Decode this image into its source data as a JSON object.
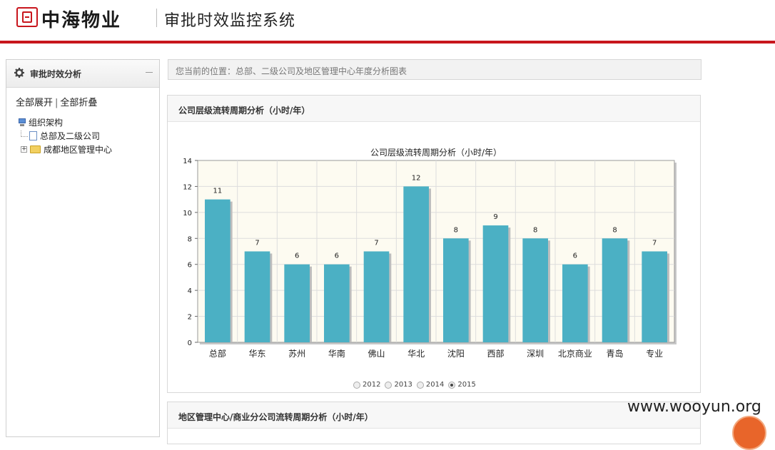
{
  "header": {
    "brand": "中海物业",
    "system_title": "审批时效监控系统"
  },
  "sidebar": {
    "title": "审批时效分析",
    "expand_all": "全部展开",
    "separator": "|",
    "collapse_all": "全部折叠",
    "tree": {
      "root": "组织架构",
      "children": [
        "总部及二级公司",
        "成都地区管理中心"
      ]
    }
  },
  "breadcrumb": "您当前的位置：总部、二级公司及地区管理中心年度分析图表",
  "panel1": {
    "title": "公司层级流转周期分析（小时/年）"
  },
  "panel2": {
    "title": "地区管理中心/商业分公司流转周期分析（小时/年）"
  },
  "chart_data": {
    "type": "bar",
    "title": "公司层级流转周期分析（小时/年）",
    "categories": [
      "总部",
      "华东",
      "苏州",
      "华南",
      "佛山",
      "华北",
      "沈阳",
      "西部",
      "深圳",
      "北京商业",
      "青岛",
      "专业"
    ],
    "values": [
      11,
      7,
      6,
      6,
      7,
      12,
      8,
      9,
      8,
      6,
      8,
      7
    ],
    "value_labels": [
      "11",
      "7",
      "6",
      "6",
      "7",
      "12",
      "8",
      "9",
      "8",
      "6",
      "8",
      "7"
    ],
    "ylim": [
      0,
      14
    ],
    "yticks": [
      0,
      2,
      4,
      6,
      8,
      10,
      12,
      14
    ],
    "ytick_labels": [
      "0",
      "2",
      "4",
      "6",
      "8",
      "10",
      "12",
      "14"
    ],
    "grid": true,
    "bar_color": "#4bb0c4",
    "plot_bg": "#fdfbf1",
    "legend": {
      "placement": "bottom",
      "years": [
        "2012",
        "2013",
        "2014",
        "2015"
      ],
      "selected": "2015"
    }
  },
  "watermark": "www.wooyun.org",
  "colors": {
    "accent_red": "#c8161d"
  }
}
